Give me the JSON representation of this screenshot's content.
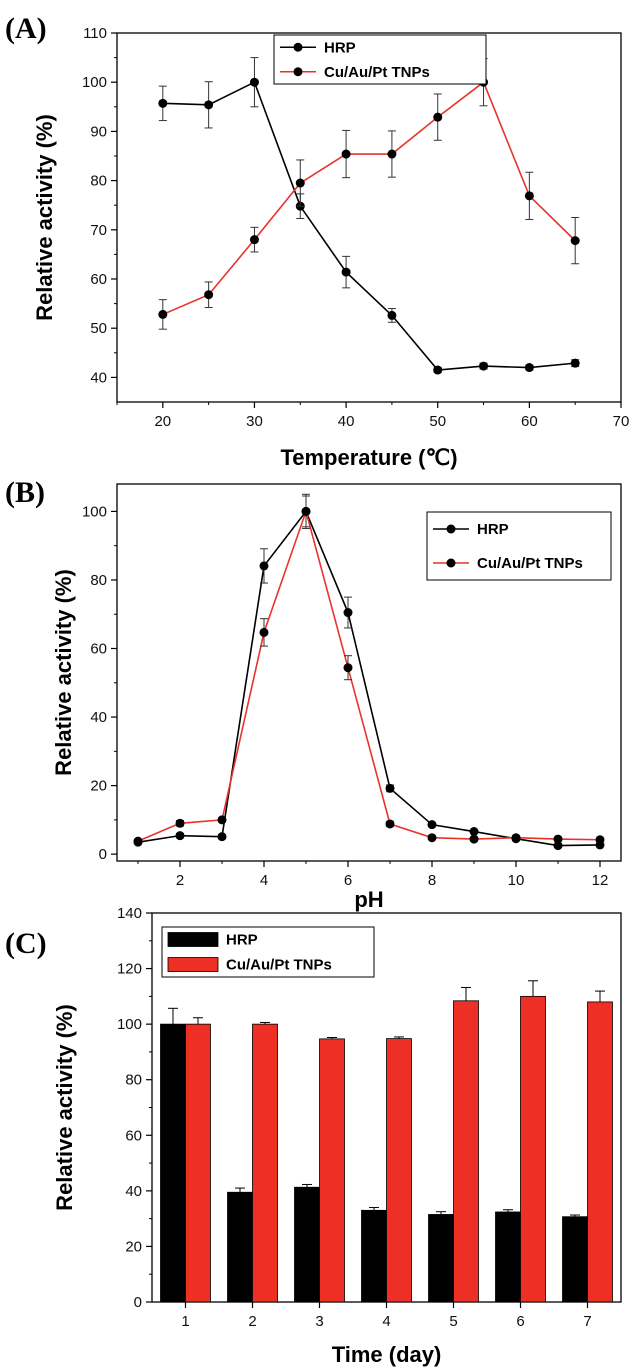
{
  "chart_data": [
    {
      "panel_label": "(A)",
      "type": "line",
      "xlabel": "Temperature (℃)",
      "ylabel": "Relative activity (%)",
      "xlim": [
        15,
        70
      ],
      "ylim": [
        35,
        110
      ],
      "xticks": [
        20,
        30,
        40,
        50,
        60,
        70
      ],
      "yticks": [
        40,
        50,
        60,
        70,
        80,
        90,
        100,
        110
      ],
      "legend_position": "top-center",
      "x": [
        20,
        25,
        30,
        35,
        40,
        45,
        50,
        55,
        60,
        65
      ],
      "series": [
        {
          "name": "HRP",
          "color": "#000000",
          "values": [
            95.7,
            95.4,
            100,
            74.8,
            61.4,
            52.6,
            41.5,
            42.3,
            42.0,
            42.9
          ],
          "errors": [
            3.5,
            4.7,
            5.0,
            2.5,
            3.2,
            1.4,
            0.5,
            0.6,
            0.5,
            0.7
          ]
        },
        {
          "name": "Cu/Au/Pt TNPs",
          "color": "#e8332b",
          "values": [
            52.8,
            56.8,
            68.0,
            79.5,
            85.4,
            85.4,
            92.9,
            100,
            76.9,
            67.8
          ],
          "errors": [
            3.0,
            2.6,
            2.5,
            4.7,
            4.8,
            4.7,
            4.7,
            4.8,
            4.8,
            4.7
          ]
        }
      ]
    },
    {
      "panel_label": "(B)",
      "type": "line",
      "xlabel": "pH",
      "ylabel": "Relative activity (%)",
      "xlim": [
        0.5,
        12.5
      ],
      "ylim": [
        -2,
        108
      ],
      "xticks": [
        2,
        4,
        6,
        8,
        10,
        12
      ],
      "yticks": [
        0,
        20,
        40,
        60,
        80,
        100
      ],
      "legend_position": "top-right",
      "x": [
        1,
        2,
        3,
        4,
        5,
        6,
        7,
        8,
        9,
        10,
        11,
        12
      ],
      "series": [
        {
          "name": "HRP",
          "color": "#000000",
          "values": [
            3.5,
            5.4,
            5.1,
            84.1,
            100,
            70.5,
            19.2,
            8.6,
            6.6,
            4.5,
            2.5,
            2.7
          ],
          "errors": [
            0.3,
            0.6,
            0.6,
            5.0,
            5.0,
            4.5,
            1.0,
            0.5,
            0.5,
            0.4,
            0.3,
            0.3
          ]
        },
        {
          "name": "Cu/Au/Pt TNPs",
          "color": "#e8332b",
          "values": [
            3.8,
            9.0,
            10.0,
            64.7,
            100,
            54.4,
            8.8,
            4.8,
            4.4,
            4.8,
            4.4,
            4.2
          ],
          "errors": [
            0.3,
            0.8,
            0.6,
            4.0,
            4.5,
            3.5,
            0.7,
            0.4,
            0.4,
            0.4,
            0.4,
            0.4
          ]
        }
      ]
    },
    {
      "panel_label": "(C)",
      "type": "bar",
      "xlabel": "Time (day)",
      "ylabel": "Relative activity (%)",
      "ylim": [
        0,
        140
      ],
      "yticks": [
        0,
        20,
        40,
        60,
        80,
        100,
        120,
        140
      ],
      "legend_position": "top-left",
      "categories": [
        "1",
        "2",
        "3",
        "4",
        "5",
        "6",
        "7"
      ],
      "series": [
        {
          "name": "HRP",
          "color": "#000000",
          "values": [
            100,
            39.5,
            41.3,
            33.0,
            31.5,
            32.4,
            30.7
          ],
          "errors": [
            5.7,
            1.5,
            1.0,
            1.0,
            1.0,
            0.8,
            0.6
          ]
        },
        {
          "name": "Cu/Au/Pt TNPs",
          "color": "#ee2f25",
          "values": [
            100,
            100,
            94.7,
            94.8,
            108.4,
            110.0,
            108.0
          ],
          "errors": [
            2.3,
            0.6,
            0.5,
            0.6,
            4.8,
            5.6,
            3.9
          ]
        }
      ]
    }
  ]
}
